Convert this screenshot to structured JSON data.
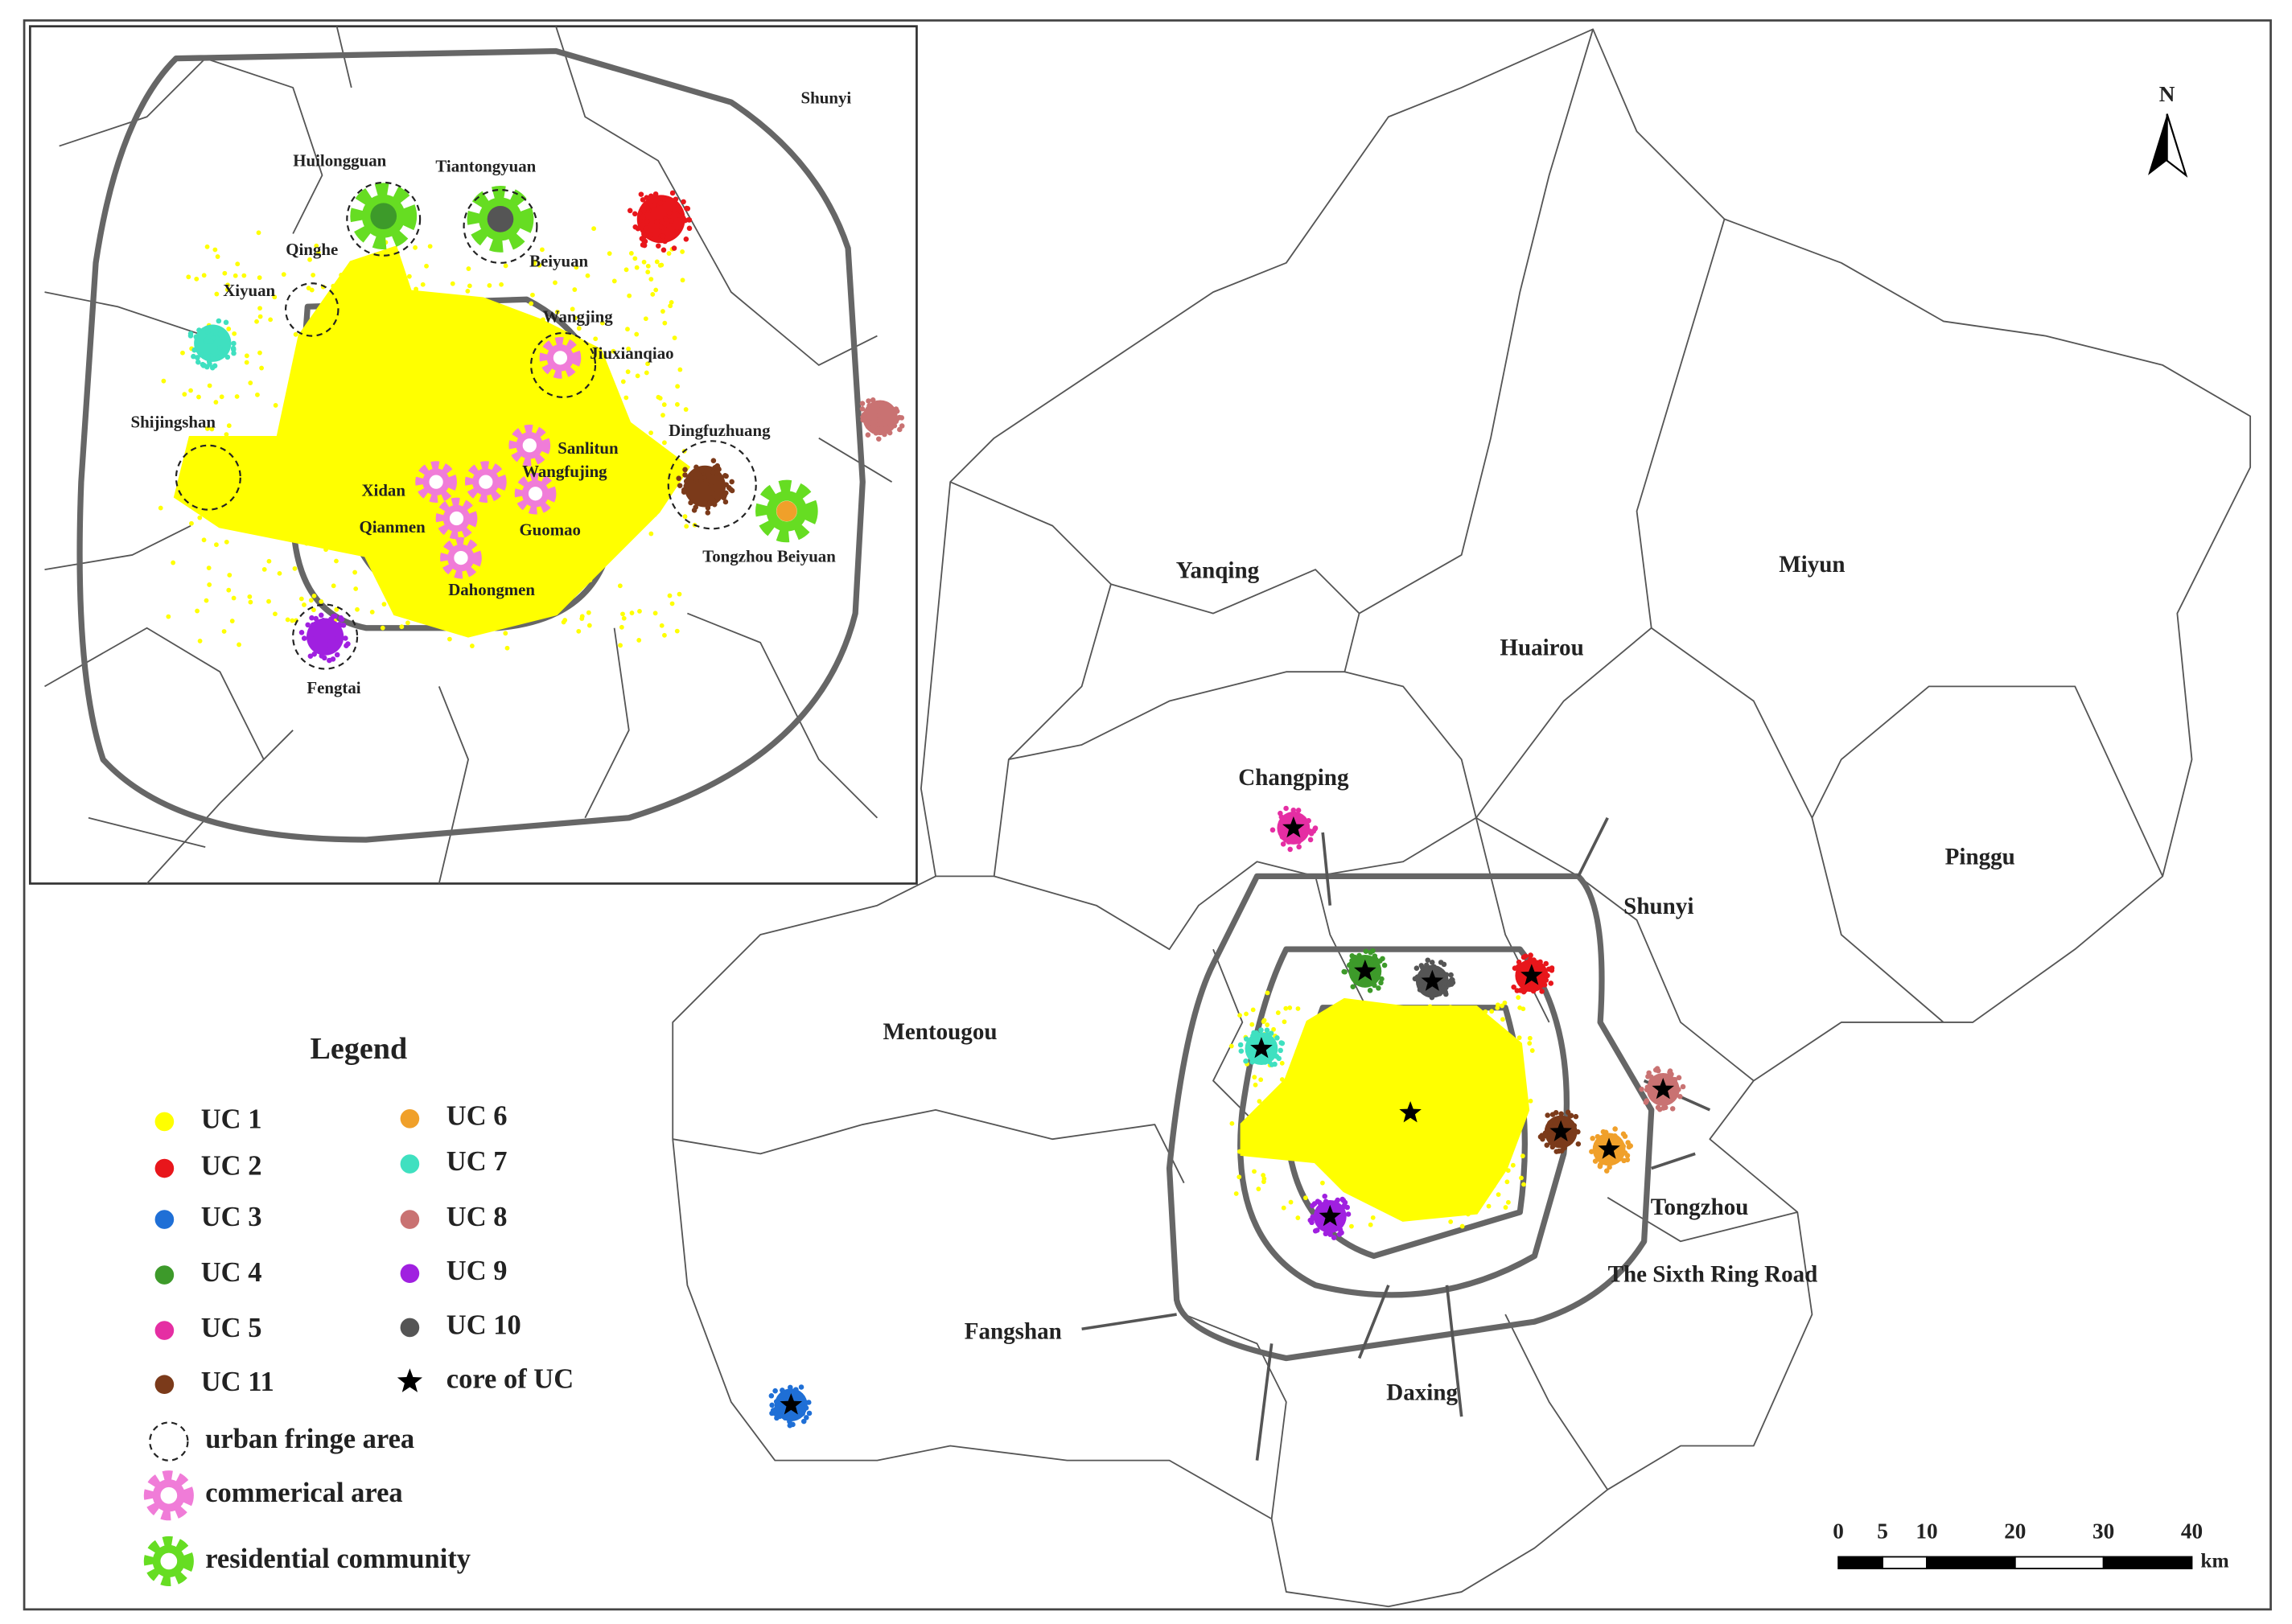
{
  "inset": {
    "labels": [
      "Shunyi",
      "Huilongguan",
      "Tiantongyuan",
      "Qinghe",
      "Beiyuan",
      "Xiyuan",
      "Wangjing",
      "Jiuxianqiao",
      "Shijingshan",
      "Dingfuzhuang",
      "Sanlitun",
      "Wangfujing",
      "Xidan",
      "Qianmen",
      "Guomao",
      "Tongzhou Beiyuan",
      "Dahongmen",
      "Fengtai"
    ]
  },
  "main": {
    "labels": [
      "Yanqing",
      "Huairou",
      "Miyun",
      "Changping",
      "Pinggu",
      "Shunyi",
      "Mentougou",
      "Tongzhou",
      "Fangshan",
      "The Sixth Ring Road",
      "Daxing"
    ]
  },
  "north_arrow": "N",
  "legend": {
    "title": "Legend",
    "items": [
      {
        "label": "UC 1",
        "color": "#ffff00"
      },
      {
        "label": "UC 2",
        "color": "#e8161b"
      },
      {
        "label": "UC 3",
        "color": "#1f6fd6"
      },
      {
        "label": "UC 4",
        "color": "#3d9a2a"
      },
      {
        "label": "UC 5",
        "color": "#e52ea3"
      },
      {
        "label": "UC 6",
        "color": "#f0a02a"
      },
      {
        "label": "UC 7",
        "color": "#3fe0c0"
      },
      {
        "label": "UC 8",
        "color": "#c97272"
      },
      {
        "label": "UC 9",
        "color": "#a020e0"
      },
      {
        "label": "UC 10",
        "color": "#555555"
      },
      {
        "label": "UC 11",
        "color": "#7b3a1a"
      },
      {
        "label": "core of UC"
      },
      {
        "label": "urban fringe area"
      },
      {
        "label": "commerical area",
        "color": "#f07cd8"
      },
      {
        "label": "residential community",
        "color": "#66dd22"
      }
    ]
  },
  "scale_bar": {
    "ticks": [
      0,
      5,
      10,
      20,
      30,
      40
    ],
    "unit": "km"
  }
}
